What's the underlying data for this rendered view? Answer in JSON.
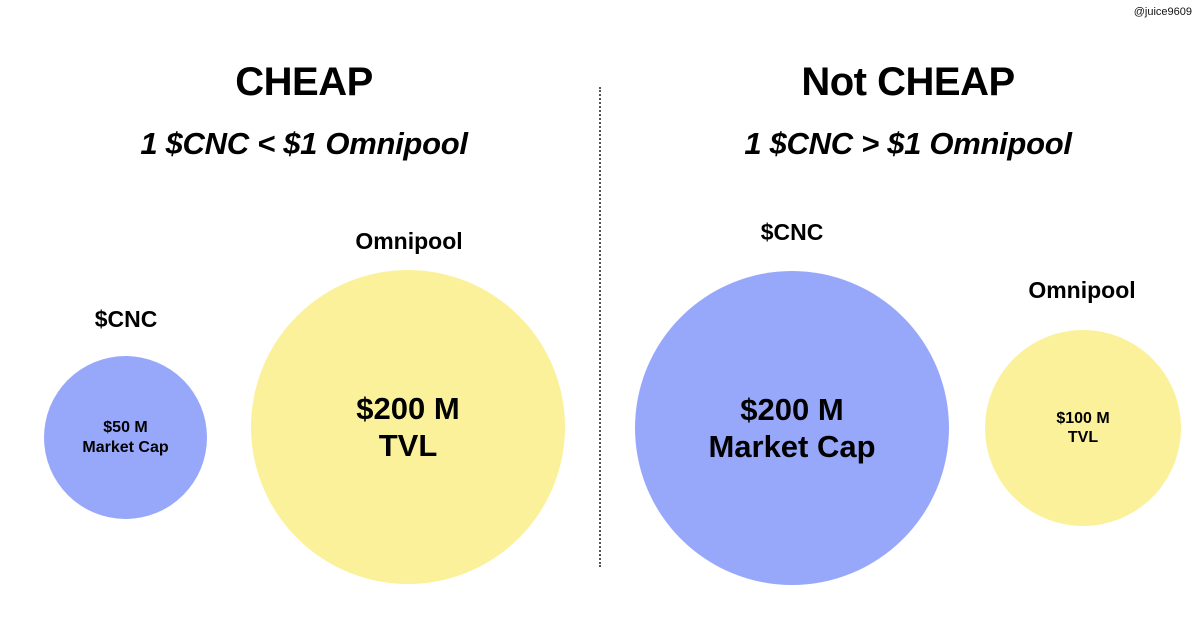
{
  "watermark": "@juice9609",
  "colors": {
    "cnc_circle": "#97a8fb",
    "omnipool_circle": "#fbf19b",
    "divider": "#555555"
  },
  "left": {
    "title": "CHEAP",
    "subtitle": "1 $CNC < $1 Omnipool",
    "cnc": {
      "label": "$CNC",
      "value": "$50 M",
      "metric": "Market Cap"
    },
    "omnipool": {
      "label": "Omnipool",
      "value": "$200 M",
      "metric": "TVL"
    }
  },
  "right": {
    "title": "Not CHEAP",
    "subtitle": "1 $CNC > $1 Omnipool",
    "cnc": {
      "label": "$CNC",
      "value": "$200 M",
      "metric": "Market Cap"
    },
    "omnipool": {
      "label": "Omnipool",
      "value": "$100 M",
      "metric": "TVL"
    }
  }
}
